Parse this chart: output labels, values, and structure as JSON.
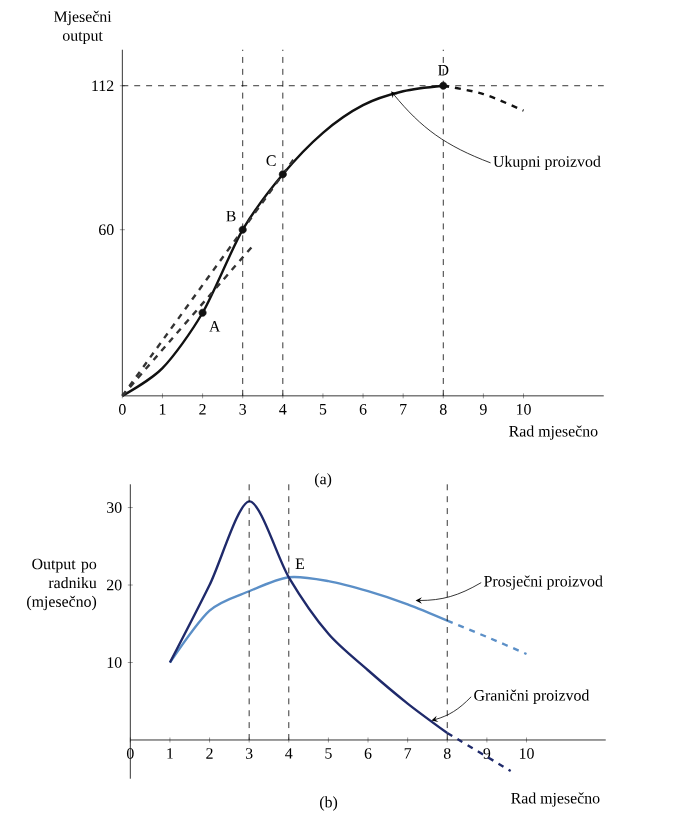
{
  "chart_data": [
    {
      "type": "line",
      "xlabel": "Rad mjesečno",
      "ylabel": "Mjesečni output",
      "xlim": [
        0,
        12
      ],
      "ylim": [
        0,
        125
      ],
      "xticks": [
        0,
        1,
        2,
        3,
        4,
        5,
        6,
        7,
        8,
        9,
        10
      ],
      "yticks": [
        60,
        112
      ],
      "grid": false,
      "series": [
        {
          "x": [
            0,
            1,
            2,
            3,
            4,
            5,
            6,
            7,
            8
          ],
          "values": [
            0,
            10,
            30,
            60,
            80,
            95,
            105,
            110,
            112
          ],
          "color": "#111111"
        },
        {
          "x": [
            8,
            9,
            10
          ],
          "values": [
            112,
            109,
            103
          ],
          "color": "#111111",
          "line_style": "dashed"
        },
        {
          "x": [
            0,
            4.3
          ],
          "values": [
            0,
            86
          ],
          "color": "#333333",
          "line_style": "dashed"
        },
        {
          "x": [
            0,
            3.3
          ],
          "values": [
            0,
            55
          ],
          "color": "#333333",
          "line_style": "dashed"
        },
        {
          "type": "scatter",
          "x": [
            2,
            3,
            4,
            8
          ],
          "values": [
            30,
            60,
            80,
            112
          ],
          "color": "#111111",
          "marker": "circle"
        }
      ],
      "ref_lines": [
        {
          "axis": "y",
          "value": 112
        },
        {
          "axis": "x",
          "value": 3
        },
        {
          "axis": "x",
          "value": 4
        },
        {
          "axis": "x",
          "value": 8
        }
      ],
      "annotations": [
        {
          "text": "A",
          "x": 2,
          "y": 30
        },
        {
          "text": "B",
          "x": 3,
          "y": 60
        },
        {
          "text": "C",
          "x": 4,
          "y": 80
        },
        {
          "text": "D",
          "x": 8,
          "y": 112
        },
        {
          "text": "Ukupni proizvod",
          "x": 6.7,
          "y": 110
        },
        "(a)"
      ]
    },
    {
      "type": "line",
      "xlabel": "Rad mjesečno",
      "ylabel": "Output po radniku (mjesečno)",
      "xlim": [
        0,
        12
      ],
      "ylim": [
        -5,
        33
      ],
      "xticks": [
        0,
        1,
        2,
        3,
        4,
        5,
        6,
        7,
        8,
        9,
        10
      ],
      "yticks": [
        10,
        20,
        30
      ],
      "grid": false,
      "series": [
        {
          "x": [
            1,
            2,
            3,
            4,
            5,
            6,
            7,
            8
          ],
          "values": [
            10,
            16.7,
            19.2,
            21,
            20.5,
            19.2,
            17.5,
            15.4
          ],
          "color": "#5b8fc7"
        },
        {
          "x": [
            8,
            9,
            10
          ],
          "values": [
            15.4,
            13.3,
            11.1
          ],
          "color": "#5b8fc7",
          "line_style": "dashed"
        },
        {
          "x": [
            1,
            2,
            3,
            4,
            5,
            6,
            7,
            8
          ],
          "values": [
            10,
            20,
            30.8,
            21,
            13.7,
            9,
            4.7,
            0.9
          ],
          "color": "#1f2a6b"
        },
        {
          "x": [
            8,
            9.6
          ],
          "values": [
            0.9,
            -4
          ],
          "color": "#1f2a6b",
          "line_style": "dashed"
        }
      ],
      "ref_lines": [
        {
          "axis": "x",
          "value": 3
        },
        {
          "axis": "x",
          "value": 4
        },
        {
          "axis": "x",
          "value": 8
        }
      ],
      "annotations": [
        {
          "text": "E",
          "x": 4,
          "y": 21
        },
        {
          "text": "Prosječni proizvod",
          "x": 7.2,
          "y": 18
        },
        {
          "text": "Granični proizvod",
          "x": 7.6,
          "y": 2.5
        },
        "(b)"
      ]
    }
  ]
}
